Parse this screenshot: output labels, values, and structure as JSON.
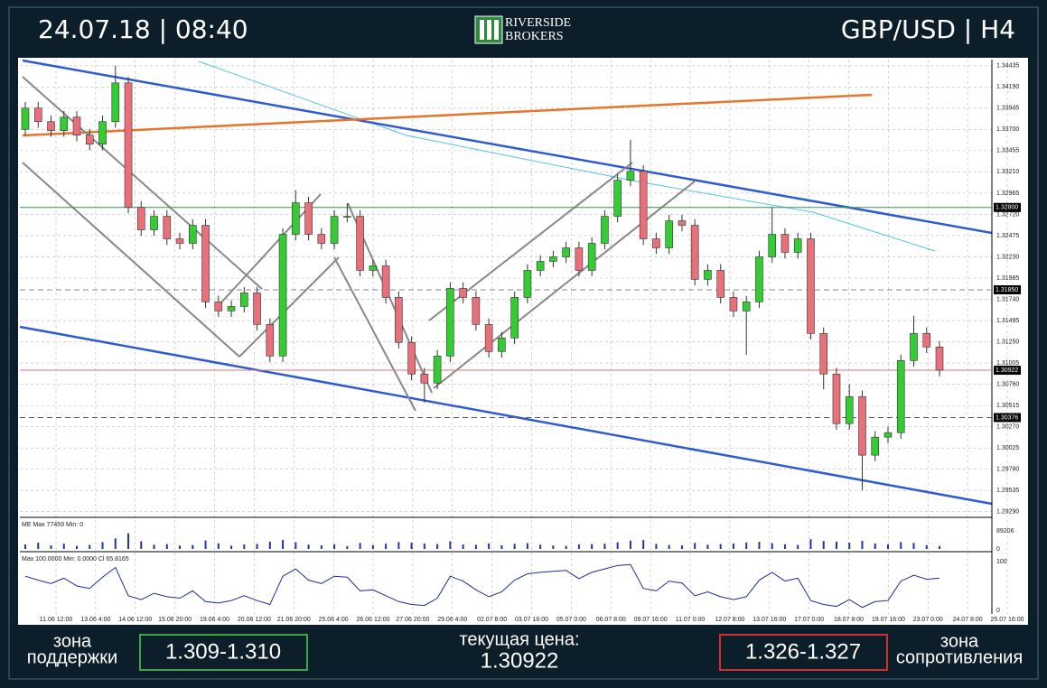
{
  "header": {
    "datetime": "24.07.18 | 08:40",
    "logo_top": "RIVERSIDE",
    "logo_bottom": "BROKERS",
    "instrument": "GBP/USD | H4"
  },
  "chart_data": {
    "type": "candlestick",
    "candles": [
      [
        1.337,
        1.34016,
        1.3363,
        1.33946
      ],
      [
        1.33946,
        1.34016,
        1.3372,
        1.3379
      ],
      [
        1.3379,
        1.3386,
        1.33616,
        1.33686
      ],
      [
        1.33686,
        1.33912,
        1.33616,
        1.33842
      ],
      [
        1.33842,
        1.33912,
        1.33564,
        1.33634
      ],
      [
        1.33634,
        1.33704,
        1.3346,
        1.3353
      ],
      [
        1.3353,
        1.3386,
        1.3346,
        1.3379
      ],
      [
        1.3379,
        1.34435,
        1.3372,
        1.34237
      ],
      [
        1.34237,
        1.34307,
        1.32732,
        1.32802
      ],
      [
        1.32802,
        1.32872,
        1.32472,
        1.32542
      ],
      [
        1.32542,
        1.32768,
        1.32472,
        1.32698
      ],
      [
        1.32698,
        1.32768,
        1.32368,
        1.32438
      ],
      [
        1.32438,
        1.32508,
        1.32316,
        1.32386
      ],
      [
        1.32386,
        1.32664,
        1.32316,
        1.32594
      ],
      [
        1.32594,
        1.32664,
        1.3164,
        1.3171
      ],
      [
        1.3171,
        1.3178,
        1.31536,
        1.31606
      ],
      [
        1.31606,
        1.31728,
        1.31536,
        1.31658
      ],
      [
        1.31658,
        1.31884,
        1.31588,
        1.31814
      ],
      [
        1.31814,
        1.31884,
        1.3138,
        1.3145
      ],
      [
        1.3145,
        1.3152,
        1.31016,
        1.31086
      ],
      [
        1.31086,
        1.3256,
        1.31016,
        1.3249
      ],
      [
        1.3249,
        1.33,
        1.3242,
        1.32854
      ],
      [
        1.32854,
        1.32924,
        1.3242,
        1.3249
      ],
      [
        1.3249,
        1.3256,
        1.32316,
        1.32386
      ],
      [
        1.32386,
        1.32768,
        1.32316,
        1.32698
      ],
      [
        1.32698,
        1.3285,
        1.32628,
        1.32698
      ],
      [
        1.32698,
        1.32768,
        1.32004,
        1.32074
      ],
      [
        1.32074,
        1.32196,
        1.32004,
        1.32126
      ],
      [
        1.32126,
        1.32196,
        1.31692,
        1.31762
      ],
      [
        1.31762,
        1.31832,
        1.31172,
        1.31242
      ],
      [
        1.31242,
        1.31312,
        1.30808,
        1.30878
      ],
      [
        1.30878,
        1.30948,
        1.3055,
        1.30774
      ],
      [
        1.30774,
        1.31156,
        1.30704,
        1.31086
      ],
      [
        1.31086,
        1.31936,
        1.31016,
        1.31866
      ],
      [
        1.31866,
        1.31936,
        1.31692,
        1.31762
      ],
      [
        1.31762,
        1.31832,
        1.3138,
        1.3145
      ],
      [
        1.3145,
        1.3152,
        1.31068,
        1.31138
      ],
      [
        1.31138,
        1.31364,
        1.31068,
        1.31294
      ],
      [
        1.31294,
        1.31832,
        1.31224,
        1.31762
      ],
      [
        1.31762,
        1.32144,
        1.31692,
        1.32074
      ],
      [
        1.32074,
        1.32248,
        1.32004,
        1.32178
      ],
      [
        1.32178,
        1.323,
        1.32108,
        1.3223
      ],
      [
        1.3223,
        1.32404,
        1.3216,
        1.32334
      ],
      [
        1.32334,
        1.32404,
        1.32004,
        1.32074
      ],
      [
        1.32074,
        1.32456,
        1.32004,
        1.32386
      ],
      [
        1.32386,
        1.32768,
        1.32316,
        1.32698
      ],
      [
        1.32698,
        1.33184,
        1.32628,
        1.33114
      ],
      [
        1.33114,
        1.3358,
        1.33044,
        1.33218
      ],
      [
        1.33218,
        1.33288,
        1.32368,
        1.32438
      ],
      [
        1.32438,
        1.32508,
        1.32264,
        1.32334
      ],
      [
        1.32334,
        1.32716,
        1.32264,
        1.32646
      ],
      [
        1.32646,
        1.32716,
        1.32524,
        1.32594
      ],
      [
        1.32594,
        1.32664,
        1.319,
        1.3197
      ],
      [
        1.3197,
        1.32144,
        1.319,
        1.32074
      ],
      [
        1.32074,
        1.32144,
        1.31692,
        1.31762
      ],
      [
        1.31762,
        1.31832,
        1.31536,
        1.31606
      ],
      [
        1.31606,
        1.3178,
        1.311,
        1.3171
      ],
      [
        1.3171,
        1.323,
        1.3164,
        1.3223
      ],
      [
        1.3223,
        1.328,
        1.3216,
        1.3249
      ],
      [
        1.3249,
        1.3256,
        1.32212,
        1.32282
      ],
      [
        1.32282,
        1.32508,
        1.32212,
        1.32438
      ],
      [
        1.32438,
        1.32508,
        1.31276,
        1.31346
      ],
      [
        1.31346,
        1.31416,
        1.307,
        1.30878
      ],
      [
        1.30878,
        1.30948,
        1.30236,
        1.30306
      ],
      [
        1.30306,
        1.3076,
        1.30236,
        1.30618
      ],
      [
        1.30618,
        1.30688,
        1.29535,
        1.29942
      ],
      [
        1.29942,
        1.3022,
        1.29872,
        1.3015
      ],
      [
        1.3015,
        1.30272,
        1.3008,
        1.30202
      ],
      [
        1.30202,
        1.31104,
        1.30132,
        1.31034
      ],
      [
        1.31034,
        1.3155,
        1.30964,
        1.31346
      ],
      [
        1.31346,
        1.31416,
        1.3112,
        1.3119
      ],
      [
        1.3119,
        1.3126,
        1.30852,
        1.30922
      ]
    ],
    "ylim": [
      1.29235,
      1.34485
    ],
    "yticks": [
      1.34435,
      {
        "value": 1.3419,
        "label": "1.34190"
      },
      1.33945,
      {
        "value": 1.337,
        "label": "1.33700"
      },
      1.33455,
      {
        "value": 1.3321,
        "label": "1.33210"
      },
      1.32965,
      {
        "value": 1.3272,
        "label": "1.32720"
      },
      1.32475,
      {
        "value": 1.3223,
        "label": "1.32230"
      },
      1.31985,
      {
        "value": 1.3174,
        "label": "1.31740"
      },
      1.31495,
      {
        "value": 1.3125,
        "label": "1.31250"
      },
      1.31005,
      {
        "value": 1.3076,
        "label": "1.30760"
      },
      1.30515,
      {
        "value": 1.3027,
        "label": "1.30270"
      },
      1.30025,
      {
        "value": 1.2978,
        "label": "1.29780"
      },
      1.29535,
      {
        "value": 1.2929,
        "label": "1.29290"
      }
    ],
    "levels": [
      {
        "value": 1.328,
        "label": "1.32800",
        "color": "#2e9a4a"
      },
      {
        "value": 1.3185,
        "label": "1.31850",
        "color": "#888888"
      },
      {
        "value": 1.30922,
        "label": "1.30922",
        "color": "#e07070"
      },
      {
        "value": 1.30376,
        "label": "1.30376",
        "color": "#555555"
      }
    ],
    "xlabels": [
      "11.06 12:00",
      "13.06 4:00",
      "14.06 12:00",
      "15.06 20:00",
      "19.06 4:00",
      "20.06 12:00",
      "21.06 20:00",
      "25.06 4:00",
      "26.06 12:00",
      "27.06 20:00",
      "29.06 4:00",
      "02.07 8:00",
      "03.07 16:00",
      "05.07 0:00",
      "06.07 8:00",
      "09.07 16:00",
      "11.07 0:00",
      "12.07 8:00",
      "13.07 16:00",
      "17.07 0:00",
      "18.07 8:00",
      "19.07 16:00",
      "23.07 0:00",
      "24.07 8:00",
      "25.07 16:00"
    ],
    "grid": true,
    "up_color": "#33cc33",
    "down_color": "#e8707a",
    "volume": {
      "title": "ME Max 77459 Min: 0",
      "color": "#2233aa",
      "ylim": [
        0,
        89206
      ],
      "yticks": [
        89206,
        0
      ],
      "values": [
        22000,
        31000,
        18000,
        26000,
        15000,
        20000,
        34000,
        52000,
        77459,
        38000,
        21000,
        24000,
        17000,
        19000,
        42000,
        28000,
        16000,
        22000,
        25000,
        36000,
        45000,
        33000,
        21000,
        18000,
        23000,
        14000,
        30000,
        19000,
        26000,
        34000,
        31000,
        27000,
        24000,
        38000,
        22000,
        20000,
        27000,
        18000,
        25000,
        29000,
        21000,
        17000,
        15000,
        22000,
        24000,
        26000,
        33000,
        41000,
        44000,
        25000,
        20000,
        18000,
        30000,
        21000,
        24000,
        27000,
        32000,
        35000,
        29000,
        22000,
        20000,
        48000,
        39000,
        36000,
        31000,
        40000,
        27000,
        22000,
        34000,
        30000,
        19000,
        14000
      ]
    },
    "oscillator": {
      "title": "Max 100.0000 Min: 0.0000 Cl 65.8165",
      "color": "#1c2c9c",
      "ylim": [
        0,
        100
      ],
      "yticks": [
        100,
        0
      ],
      "values": [
        70,
        62,
        55,
        66,
        50,
        45,
        68,
        88,
        30,
        22,
        35,
        28,
        25,
        40,
        18,
        15,
        20,
        30,
        20,
        12,
        70,
        85,
        62,
        55,
        70,
        68,
        40,
        42,
        30,
        18,
        12,
        10,
        25,
        70,
        60,
        42,
        28,
        38,
        62,
        75,
        78,
        80,
        82,
        65,
        78,
        85,
        92,
        94,
        45,
        40,
        60,
        56,
        30,
        38,
        28,
        22,
        28,
        62,
        78,
        60,
        66,
        20,
        12,
        8,
        22,
        6,
        18,
        20,
        60,
        72,
        64,
        66
      ]
    }
  },
  "footer": {
    "support_top": "зона",
    "support_bottom": "поддержки",
    "support_zone": "1.309-1.310",
    "price_label": "текущая цена:",
    "price": "1.30922",
    "resistance_zone": "1.326-1.327",
    "resistance_top": "зона",
    "resistance_bottom": "сопротивления"
  }
}
